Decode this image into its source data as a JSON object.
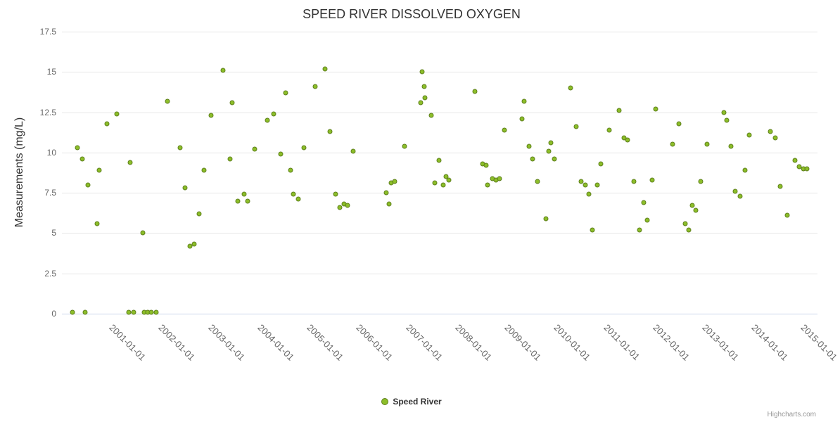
{
  "chart": {
    "title": "SPEED RIVER DISSOLVED OXYGEN",
    "credits": "Highcharts.com"
  },
  "chart_data": {
    "type": "scatter",
    "title": "SPEED RIVER DISSOLVED OXYGEN",
    "xlabel": "",
    "ylabel": "Measurements (mg/L)",
    "ylim": [
      0,
      17.5
    ],
    "xlim": [
      1999.76,
      2015.05
    ],
    "grid": true,
    "legend_position": "bottom",
    "yticks": [
      0,
      2.5,
      5,
      7.5,
      10,
      12.5,
      15,
      17.5
    ],
    "ytick_labels": [
      "0",
      "2.5",
      "5",
      "7.5",
      "10",
      "12.5",
      "15",
      "17.5"
    ],
    "xticks": [
      2001,
      2002,
      2003,
      2004,
      2005,
      2006,
      2007,
      2008,
      2009,
      2010,
      2011,
      2012,
      2013,
      2014,
      2015
    ],
    "xtick_labels": [
      "2001-01-01",
      "2002-01-01",
      "2003-01-01",
      "2004-01-01",
      "2005-01-01",
      "2006-01-01",
      "2007-01-01",
      "2008-01-01",
      "2009-01-01",
      "2010-01-01",
      "2011-01-01",
      "2012-01-01",
      "2013-01-01",
      "2014-01-01",
      "2015-01-01"
    ],
    "colors": {
      "point_fill": "#8CBE29",
      "point_stroke": "#5E7F1C",
      "gridline": "#e6e6e6",
      "axis_line": "#ccd6eb"
    },
    "series": [
      {
        "name": "Speed River",
        "points": [
          [
            1999.98,
            0.1
          ],
          [
            2000.08,
            10.3
          ],
          [
            2000.17,
            9.6
          ],
          [
            2000.23,
            0.1
          ],
          [
            2000.29,
            8.0
          ],
          [
            2000.47,
            5.6
          ],
          [
            2000.52,
            8.9
          ],
          [
            2000.67,
            11.8
          ],
          [
            2000.87,
            12.4
          ],
          [
            2001.11,
            0.1
          ],
          [
            2001.14,
            9.4
          ],
          [
            2001.21,
            0.1
          ],
          [
            2001.4,
            5.0
          ],
          [
            2001.43,
            0.1
          ],
          [
            2001.5,
            0.1
          ],
          [
            2001.57,
            0.1
          ],
          [
            2001.67,
            0.1
          ],
          [
            2001.9,
            13.2
          ],
          [
            2002.15,
            10.3
          ],
          [
            2002.25,
            7.8
          ],
          [
            2002.35,
            4.2
          ],
          [
            2002.44,
            4.3
          ],
          [
            2002.54,
            6.2
          ],
          [
            2002.64,
            8.9
          ],
          [
            2002.78,
            12.3
          ],
          [
            2003.02,
            15.1
          ],
          [
            2003.16,
            9.6
          ],
          [
            2003.2,
            13.1
          ],
          [
            2003.32,
            7.0
          ],
          [
            2003.45,
            7.4
          ],
          [
            2003.52,
            7.0
          ],
          [
            2003.66,
            10.2
          ],
          [
            2003.92,
            12.0
          ],
          [
            2004.05,
            12.4
          ],
          [
            2004.19,
            9.9
          ],
          [
            2004.29,
            13.7
          ],
          [
            2004.39,
            8.9
          ],
          [
            2004.44,
            7.4
          ],
          [
            2004.54,
            7.1
          ],
          [
            2004.66,
            10.3
          ],
          [
            2004.88,
            14.1
          ],
          [
            2005.08,
            15.2
          ],
          [
            2005.18,
            11.3
          ],
          [
            2005.3,
            7.4
          ],
          [
            2005.38,
            6.6
          ],
          [
            2005.47,
            6.8
          ],
          [
            2005.54,
            6.7
          ],
          [
            2005.65,
            10.1
          ],
          [
            2006.32,
            7.5
          ],
          [
            2006.38,
            6.8
          ],
          [
            2006.42,
            8.1
          ],
          [
            2006.5,
            8.2
          ],
          [
            2006.69,
            10.4
          ],
          [
            2007.02,
            13.1
          ],
          [
            2007.05,
            15.0
          ],
          [
            2007.09,
            14.1
          ],
          [
            2007.1,
            13.4
          ],
          [
            2007.23,
            12.3
          ],
          [
            2007.3,
            8.1
          ],
          [
            2007.39,
            9.5
          ],
          [
            2007.47,
            8.0
          ],
          [
            2007.53,
            8.5
          ],
          [
            2007.59,
            8.3
          ],
          [
            2008.11,
            13.8
          ],
          [
            2008.27,
            9.3
          ],
          [
            2008.34,
            9.2
          ],
          [
            2008.38,
            8.0
          ],
          [
            2008.47,
            8.4
          ],
          [
            2008.55,
            8.3
          ],
          [
            2008.61,
            8.4
          ],
          [
            2008.71,
            11.4
          ],
          [
            2009.07,
            12.1
          ],
          [
            2009.11,
            13.2
          ],
          [
            2009.21,
            10.4
          ],
          [
            2009.29,
            9.6
          ],
          [
            2009.38,
            8.2
          ],
          [
            2009.55,
            5.9
          ],
          [
            2009.61,
            10.1
          ],
          [
            2009.65,
            10.6
          ],
          [
            2009.72,
            9.6
          ],
          [
            2010.06,
            14.0
          ],
          [
            2010.17,
            11.6
          ],
          [
            2010.27,
            8.2
          ],
          [
            2010.35,
            8.0
          ],
          [
            2010.42,
            7.4
          ],
          [
            2010.5,
            5.2
          ],
          [
            2010.6,
            8.0
          ],
          [
            2010.67,
            9.3
          ],
          [
            2010.83,
            11.4
          ],
          [
            2011.04,
            12.6
          ],
          [
            2011.14,
            10.9
          ],
          [
            2011.21,
            10.8
          ],
          [
            2011.33,
            8.2
          ],
          [
            2011.45,
            5.2
          ],
          [
            2011.54,
            6.9
          ],
          [
            2011.6,
            5.8
          ],
          [
            2011.71,
            8.3
          ],
          [
            2011.77,
            12.7
          ],
          [
            2012.12,
            10.5
          ],
          [
            2012.24,
            11.8
          ],
          [
            2012.38,
            5.6
          ],
          [
            2012.45,
            5.2
          ],
          [
            2012.51,
            6.7
          ],
          [
            2012.59,
            6.4
          ],
          [
            2012.69,
            8.2
          ],
          [
            2012.81,
            10.5
          ],
          [
            2013.16,
            12.5
          ],
          [
            2013.22,
            12.0
          ],
          [
            2013.3,
            10.4
          ],
          [
            2013.39,
            7.6
          ],
          [
            2013.49,
            7.3
          ],
          [
            2013.59,
            8.9
          ],
          [
            2013.67,
            11.1
          ],
          [
            2014.09,
            11.3
          ],
          [
            2014.19,
            10.9
          ],
          [
            2014.3,
            7.9
          ],
          [
            2014.44,
            6.1
          ],
          [
            2014.6,
            9.5
          ],
          [
            2014.68,
            9.1
          ],
          [
            2014.77,
            9.0
          ],
          [
            2014.84,
            9.0
          ]
        ]
      }
    ]
  }
}
